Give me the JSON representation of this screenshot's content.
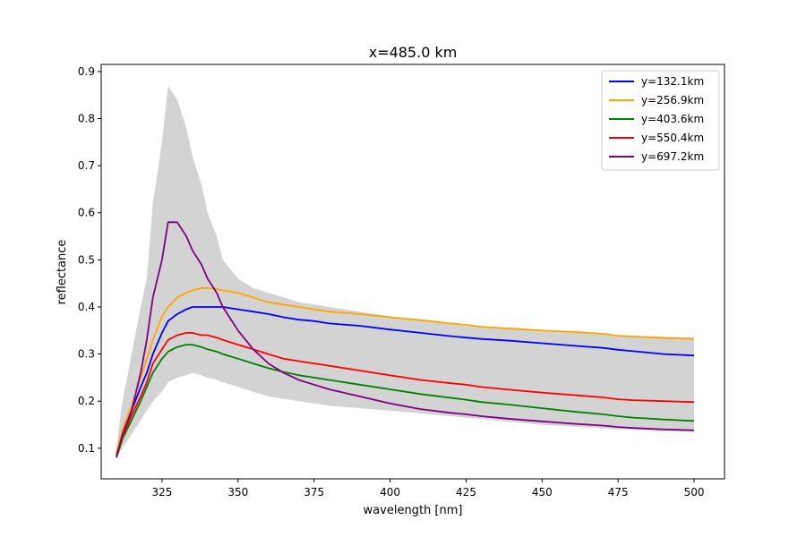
{
  "chart_data": {
    "type": "line",
    "title": "x=485.0 km",
    "xlabel": "wavelength [nm]",
    "ylabel": "reflectance",
    "xlim": [
      305,
      510
    ],
    "ylim": [
      0.035,
      0.915
    ],
    "xticks": [
      325,
      350,
      375,
      400,
      425,
      450,
      475,
      500
    ],
    "xtick_labels": [
      "325",
      "350",
      "375",
      "400",
      "425",
      "450",
      "475",
      "500"
    ],
    "yticks": [
      0.1,
      0.2,
      0.3,
      0.4,
      0.5,
      0.6,
      0.7,
      0.8,
      0.9
    ],
    "ytick_labels": [
      "0.1",
      "0.2",
      "0.3",
      "0.4",
      "0.5",
      "0.6",
      "0.7",
      "0.8",
      "0.9"
    ],
    "grid": false,
    "legend_position": "top-right",
    "envelope": {
      "color": "#d3d3d3",
      "x": [
        310,
        312,
        315,
        318,
        320,
        322,
        325,
        327,
        330,
        333,
        335,
        338,
        340,
        343,
        345,
        350,
        355,
        360,
        365,
        370,
        375,
        380,
        390,
        400,
        425,
        450,
        475,
        500
      ],
      "upper": [
        0.1,
        0.2,
        0.3,
        0.4,
        0.46,
        0.62,
        0.75,
        0.87,
        0.84,
        0.78,
        0.72,
        0.66,
        0.6,
        0.55,
        0.5,
        0.46,
        0.44,
        0.43,
        0.42,
        0.41,
        0.405,
        0.4,
        0.39,
        0.38,
        0.36,
        0.35,
        0.34,
        0.335
      ],
      "lower": [
        0.08,
        0.1,
        0.13,
        0.16,
        0.18,
        0.2,
        0.22,
        0.24,
        0.25,
        0.255,
        0.26,
        0.255,
        0.25,
        0.245,
        0.24,
        0.23,
        0.22,
        0.21,
        0.205,
        0.2,
        0.195,
        0.19,
        0.185,
        0.18,
        0.165,
        0.15,
        0.14,
        0.135
      ]
    },
    "series": [
      {
        "name": "y=132.1km",
        "color": "#0000ff",
        "x": [
          310,
          312,
          315,
          318,
          320,
          322,
          325,
          327,
          330,
          333,
          335,
          338,
          340,
          343,
          345,
          350,
          355,
          360,
          365,
          370,
          375,
          380,
          390,
          400,
          410,
          420,
          425,
          430,
          440,
          450,
          460,
          470,
          475,
          480,
          490,
          500
        ],
        "values": [
          0.085,
          0.13,
          0.18,
          0.23,
          0.26,
          0.3,
          0.345,
          0.37,
          0.385,
          0.395,
          0.4,
          0.4,
          0.4,
          0.4,
          0.4,
          0.395,
          0.39,
          0.385,
          0.378,
          0.373,
          0.37,
          0.365,
          0.36,
          0.352,
          0.345,
          0.338,
          0.335,
          0.332,
          0.328,
          0.323,
          0.318,
          0.313,
          0.309,
          0.306,
          0.3,
          0.297
        ]
      },
      {
        "name": "y=256.9km",
        "color": "#ffa500",
        "x": [
          310,
          312,
          315,
          318,
          320,
          322,
          325,
          327,
          330,
          333,
          335,
          338,
          340,
          343,
          345,
          350,
          355,
          360,
          365,
          370,
          375,
          380,
          390,
          400,
          410,
          420,
          425,
          430,
          440,
          450,
          460,
          470,
          475,
          480,
          490,
          500
        ],
        "values": [
          0.09,
          0.14,
          0.19,
          0.25,
          0.29,
          0.33,
          0.38,
          0.4,
          0.42,
          0.43,
          0.435,
          0.44,
          0.44,
          0.438,
          0.435,
          0.43,
          0.42,
          0.41,
          0.405,
          0.4,
          0.395,
          0.39,
          0.385,
          0.378,
          0.372,
          0.365,
          0.362,
          0.358,
          0.354,
          0.35,
          0.347,
          0.343,
          0.339,
          0.337,
          0.334,
          0.332
        ]
      },
      {
        "name": "y=403.6km",
        "color": "#008000",
        "x": [
          310,
          312,
          315,
          318,
          320,
          322,
          325,
          327,
          330,
          333,
          335,
          338,
          340,
          343,
          345,
          350,
          355,
          360,
          365,
          370,
          375,
          380,
          390,
          400,
          410,
          420,
          425,
          430,
          440,
          450,
          460,
          470,
          475,
          480,
          490,
          500
        ],
        "values": [
          0.08,
          0.12,
          0.16,
          0.2,
          0.23,
          0.26,
          0.29,
          0.305,
          0.315,
          0.32,
          0.32,
          0.315,
          0.31,
          0.305,
          0.3,
          0.29,
          0.28,
          0.27,
          0.262,
          0.255,
          0.25,
          0.245,
          0.235,
          0.225,
          0.215,
          0.207,
          0.203,
          0.198,
          0.192,
          0.185,
          0.178,
          0.172,
          0.168,
          0.165,
          0.161,
          0.158
        ]
      },
      {
        "name": "y=550.4km",
        "color": "#ff0000",
        "x": [
          310,
          312,
          315,
          318,
          320,
          322,
          325,
          327,
          330,
          333,
          335,
          338,
          340,
          343,
          345,
          350,
          355,
          360,
          365,
          370,
          375,
          380,
          390,
          400,
          410,
          420,
          425,
          430,
          440,
          450,
          460,
          470,
          475,
          480,
          490,
          500
        ],
        "values": [
          0.085,
          0.125,
          0.17,
          0.21,
          0.24,
          0.28,
          0.31,
          0.33,
          0.34,
          0.345,
          0.345,
          0.34,
          0.34,
          0.335,
          0.33,
          0.32,
          0.31,
          0.3,
          0.29,
          0.285,
          0.28,
          0.275,
          0.265,
          0.255,
          0.245,
          0.238,
          0.235,
          0.23,
          0.224,
          0.218,
          0.213,
          0.208,
          0.204,
          0.202,
          0.2,
          0.198
        ]
      },
      {
        "name": "y=697.2km",
        "color": "#800080",
        "x": [
          310,
          312,
          315,
          318,
          320,
          322,
          325,
          327,
          330,
          333,
          335,
          338,
          340,
          343,
          345,
          350,
          355,
          360,
          365,
          370,
          375,
          380,
          390,
          400,
          410,
          420,
          425,
          430,
          440,
          450,
          460,
          470,
          475,
          480,
          490,
          500
        ],
        "values": [
          0.08,
          0.13,
          0.18,
          0.26,
          0.33,
          0.42,
          0.5,
          0.58,
          0.58,
          0.55,
          0.52,
          0.49,
          0.46,
          0.43,
          0.4,
          0.35,
          0.31,
          0.28,
          0.26,
          0.245,
          0.235,
          0.225,
          0.21,
          0.195,
          0.183,
          0.175,
          0.172,
          0.168,
          0.162,
          0.157,
          0.152,
          0.148,
          0.145,
          0.143,
          0.14,
          0.138
        ]
      }
    ]
  }
}
